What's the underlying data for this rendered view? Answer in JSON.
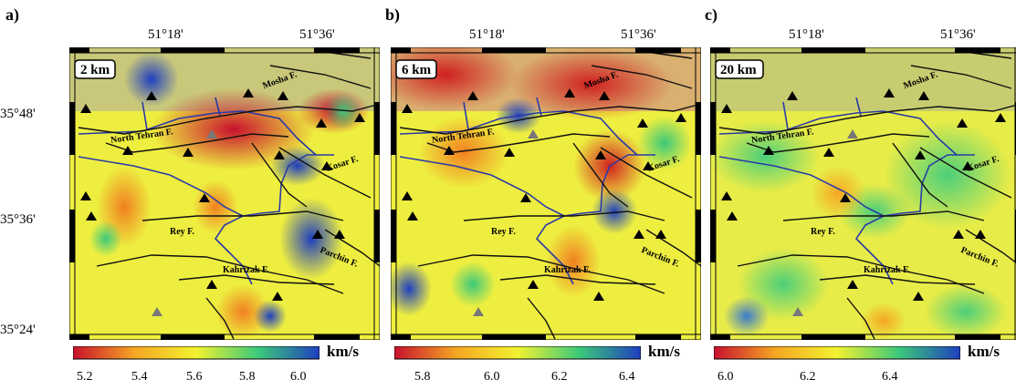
{
  "panels": [
    {
      "label": "a)",
      "depth": "2 km",
      "ticks": [
        "5.2",
        "5.4",
        "5.6",
        "5.8",
        "6.0"
      ]
    },
    {
      "label": "b)",
      "depth": "6 km",
      "ticks": [
        "5.8",
        "6.0",
        "6.2",
        "6.4"
      ]
    },
    {
      "label": "c)",
      "depth": "20 km",
      "ticks": [
        "6.0",
        "6.2",
        "6.4"
      ]
    }
  ],
  "lon_labels": [
    "51°18'",
    "51°36'"
  ],
  "lat_labels": [
    "35°48'",
    "35°36'",
    "35°24'"
  ],
  "units": "km/s",
  "faults": {
    "mosha": "Mosha F.",
    "north_tehran": "North Tehran F.",
    "kosar": "Kosar F.",
    "rey": "Rey F.",
    "kahrizak": "Kahrizak F.",
    "parchin": "Parchin F."
  },
  "colorscale": [
    "#c8102e",
    "#f5a623",
    "#f2f230",
    "#3cc97a",
    "#1f3fbf"
  ]
}
